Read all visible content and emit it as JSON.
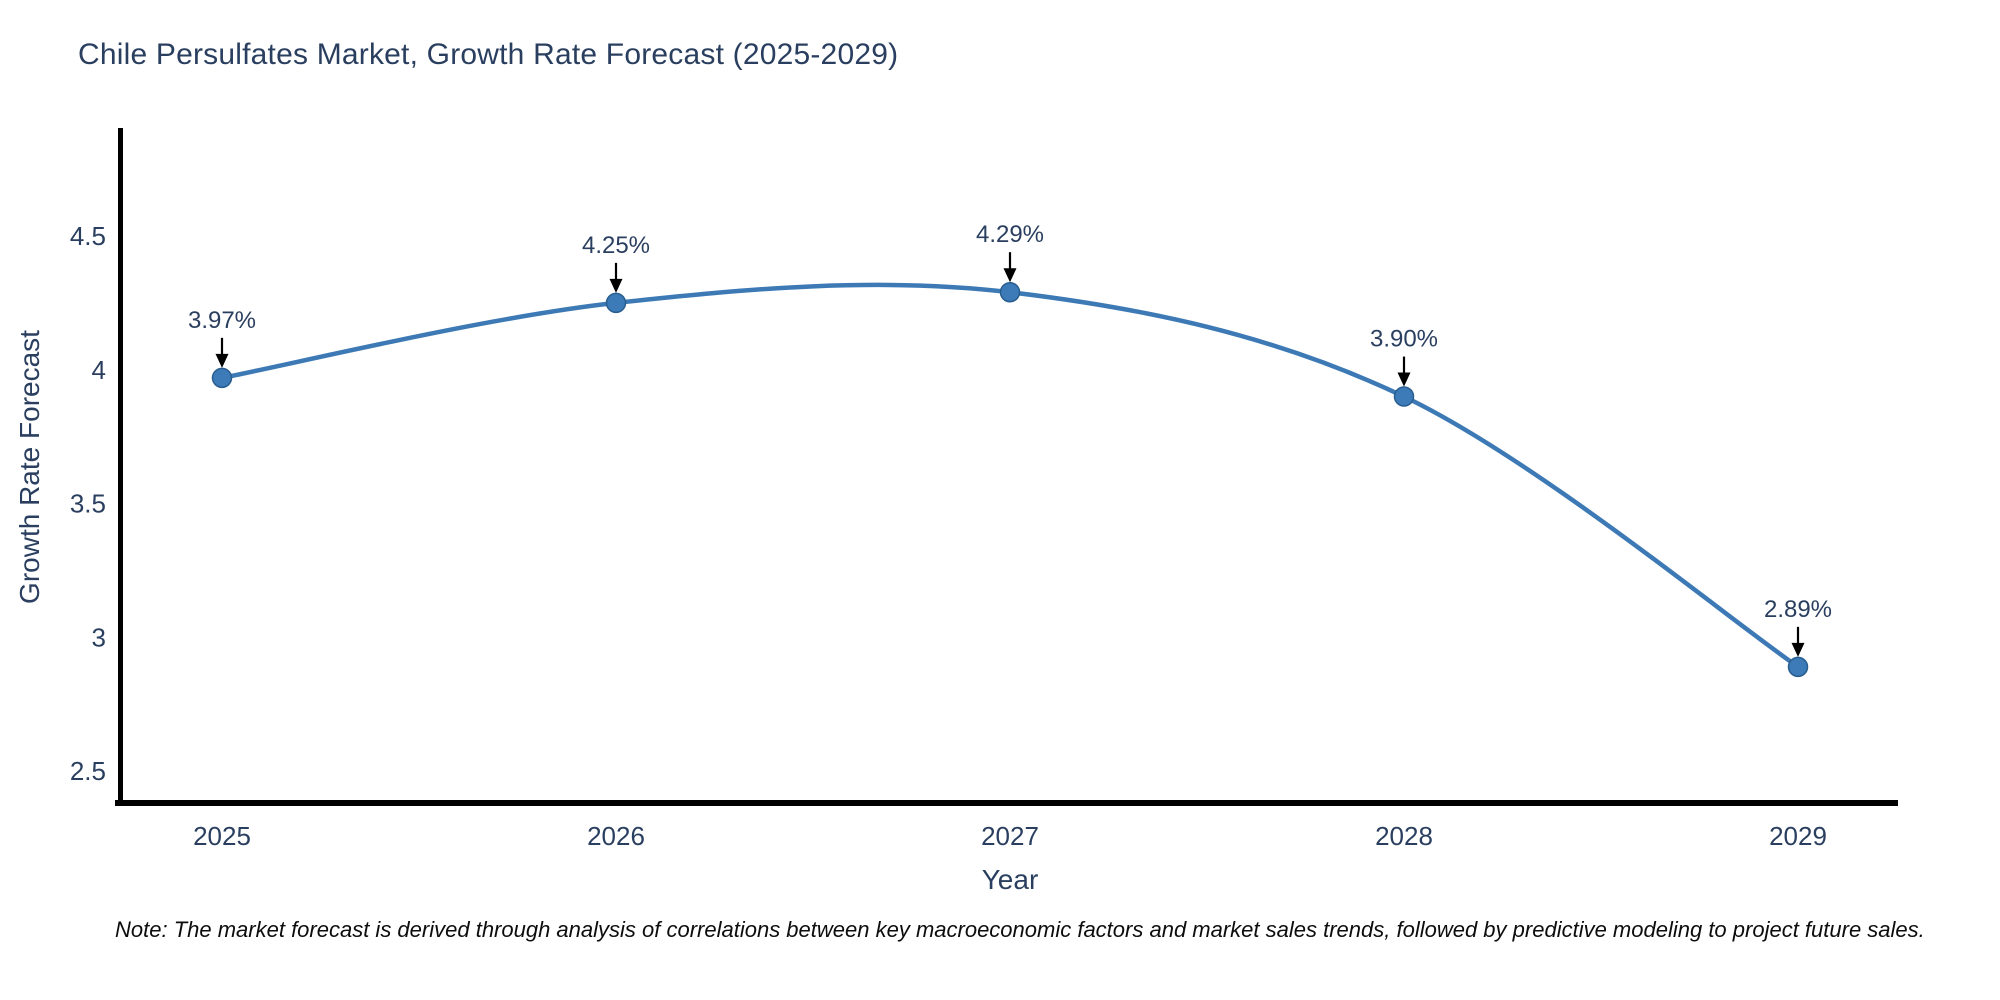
{
  "title": "Chile Persulfates Market, Growth Rate Forecast (2025-2029)",
  "note": "Note: The market forecast is derived through analysis of correlations between key macroeconomic factors and market sales trends, followed by predictive modeling to project future sales.",
  "colors": {
    "line": "#3d7ab5",
    "marker_fill": "#3c7ab8",
    "marker_edge": "#285d8f",
    "axis_spine": "#000000",
    "text": "#2a3f5f",
    "annotation_arrow": "#000000",
    "background": "#ffffff"
  },
  "chart_data": {
    "type": "line",
    "title": "Chile Persulfates Market, Growth Rate Forecast (2025-2029)",
    "xlabel": "Year",
    "ylabel": "Growth Rate Forecast",
    "categories": [
      "2025",
      "2026",
      "2027",
      "2028",
      "2029"
    ],
    "values": [
      3.97,
      4.25,
      4.29,
      3.9,
      2.89
    ],
    "point_labels": [
      "3.97%",
      "4.25%",
      "4.29%",
      "3.90%",
      "2.89%"
    ],
    "y_ticks": [
      4.5,
      4,
      3.5,
      3,
      2.5
    ],
    "y_tick_labels": [
      "4.5",
      "4",
      "3.5",
      "3",
      "2.5"
    ],
    "ylim": [
      2.37,
      4.9
    ],
    "grid": "off",
    "legend": "none",
    "line_shape": "spline",
    "annotations": "value labels with down arrows above each point"
  }
}
